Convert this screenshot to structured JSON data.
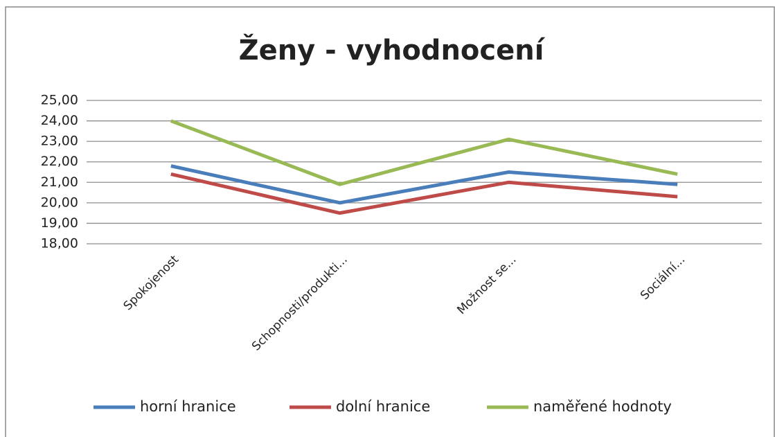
{
  "chart_data": {
    "type": "line",
    "title": "Ženy - vyhodnocení",
    "categories": [
      "Spokojenost",
      "Schopnosti/produkti...",
      "Možnost se...",
      "Sociální..."
    ],
    "series": [
      {
        "name": "horní hranice",
        "color": "#4a7ebb",
        "values": [
          21.8,
          20.0,
          21.5,
          20.9
        ]
      },
      {
        "name": "dolní hranice",
        "color": "#be4b48",
        "values": [
          21.4,
          19.5,
          21.0,
          20.3
        ]
      },
      {
        "name": "naměřené hodnoty",
        "color": "#98b954",
        "values": [
          24.0,
          20.9,
          23.1,
          21.4
        ]
      }
    ],
    "ylim": [
      18,
      25
    ],
    "yticks": [
      {
        "value": 18,
        "label": "18,00"
      },
      {
        "value": 19,
        "label": "19,00"
      },
      {
        "value": 20,
        "label": "20,00"
      },
      {
        "value": 21,
        "label": "21,00"
      },
      {
        "value": 22,
        "label": "22,00"
      },
      {
        "value": 23,
        "label": "23,00"
      },
      {
        "value": 24,
        "label": "24,00"
      },
      {
        "value": 25,
        "label": "25,00"
      }
    ],
    "grid": true,
    "legend": "bottom"
  }
}
